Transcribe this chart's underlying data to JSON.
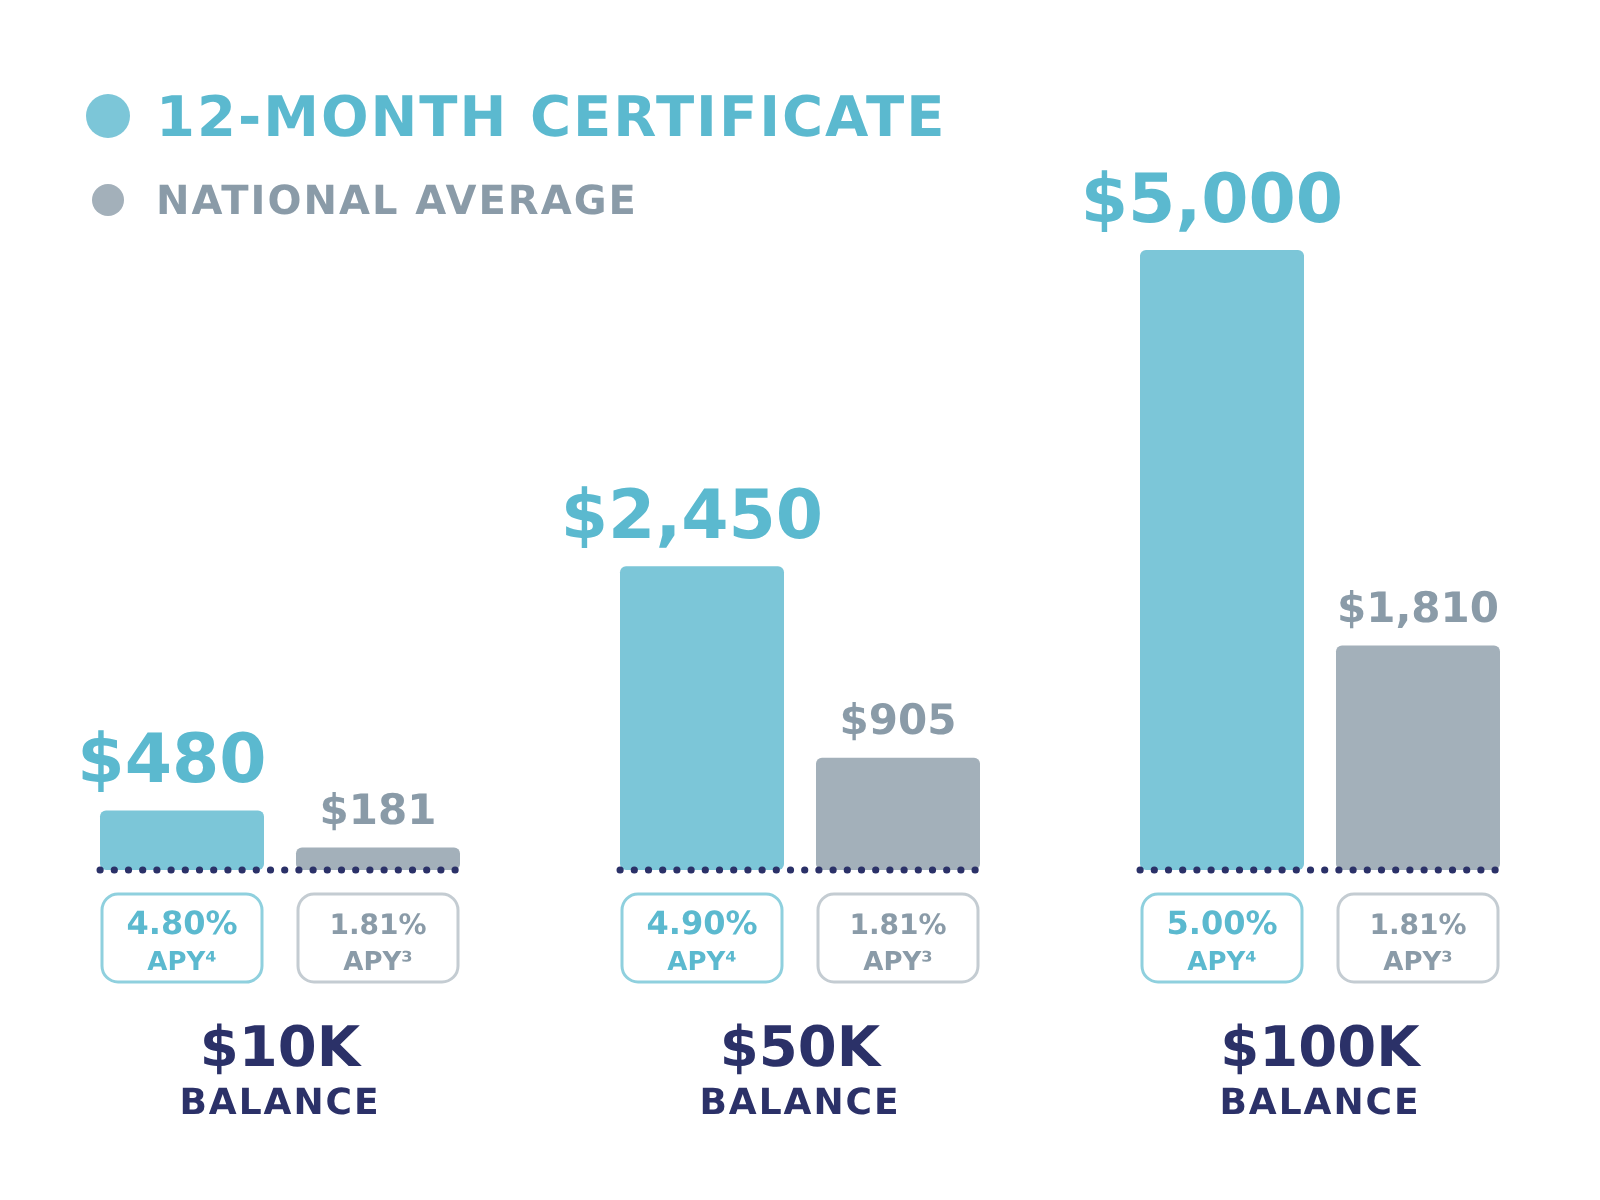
{
  "chart_data": {
    "type": "bar",
    "categories": [
      "$10K BALANCE",
      "$50K BALANCE",
      "$100K BALANCE"
    ],
    "series": [
      {
        "name": "12-MONTH CERTIFICATE",
        "color": "#7cc6d8",
        "values": [
          480,
          2450,
          5000
        ],
        "value_labels": [
          "$480",
          "$2,450",
          "$5,000"
        ]
      },
      {
        "name": "NATIONAL AVERAGE",
        "color": "#a3b0ba",
        "values": [
          181,
          905,
          1810
        ],
        "value_labels": [
          "$181",
          "$905",
          "$1,810"
        ]
      }
    ],
    "annotations": [
      "4.80% APY⁴",
      "1.81% APY³",
      "4.90% APY⁴",
      "1.81% APY³",
      "5.00% APY⁴",
      "1.81% APY³"
    ],
    "legend": "top left"
  }
}
